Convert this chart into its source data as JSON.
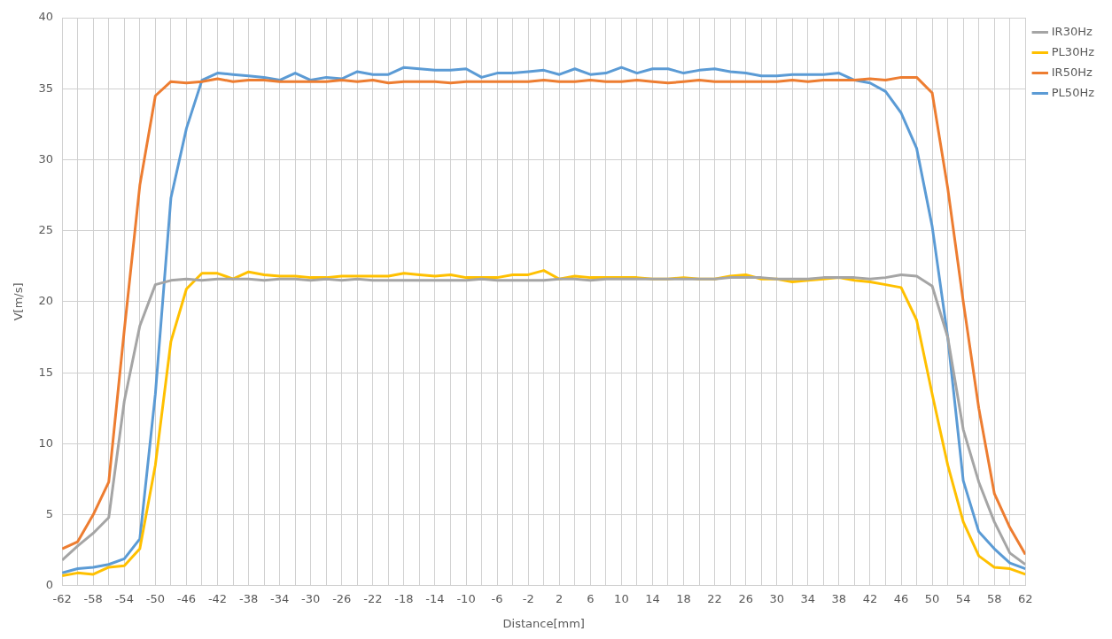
{
  "chart_data": {
    "type": "line",
    "xlabel": "Distance[mm]",
    "ylabel": "V[m/s]",
    "x": [
      -62,
      -60,
      -58,
      -56,
      -54,
      -52,
      -50,
      -48,
      -46,
      -44,
      -42,
      -40,
      -38,
      -36,
      -34,
      -32,
      -30,
      -28,
      -26,
      -24,
      -22,
      -20,
      -18,
      -16,
      -14,
      -12,
      -10,
      -8,
      -6,
      -4,
      -2,
      0,
      2,
      4,
      6,
      8,
      10,
      12,
      14,
      16,
      18,
      20,
      22,
      24,
      26,
      28,
      30,
      32,
      34,
      36,
      38,
      40,
      42,
      44,
      46,
      48,
      50,
      52,
      54,
      56,
      58,
      60,
      62
    ],
    "xlim": [
      -62,
      62
    ],
    "xticks": [
      -62,
      {
        "value": -60,
        "label": null
      },
      -58,
      {
        "value": -56,
        "label": null
      },
      -54,
      {
        "value": -52,
        "label": null
      },
      -50,
      {
        "value": -48,
        "label": null
      },
      -46,
      {
        "value": -44,
        "label": null
      },
      -42,
      {
        "value": -40,
        "label": null
      },
      -38,
      {
        "value": -36,
        "label": null
      },
      -34,
      {
        "value": -32,
        "label": null
      },
      -30,
      {
        "value": -28,
        "label": null
      },
      -26,
      {
        "value": -24,
        "label": null
      },
      -22,
      {
        "value": -20,
        "label": null
      },
      -18,
      {
        "value": -16,
        "label": null
      },
      -14,
      {
        "value": -12,
        "label": null
      },
      -10,
      {
        "value": -8,
        "label": null
      },
      -6,
      {
        "value": -4,
        "label": null
      },
      -2,
      {
        "value": 0,
        "label": null
      },
      2,
      {
        "value": 4,
        "label": null
      },
      6,
      {
        "value": 8,
        "label": null
      },
      10,
      {
        "value": 12,
        "label": null
      },
      14,
      {
        "value": 16,
        "label": null
      },
      18,
      {
        "value": 20,
        "label": null
      },
      22,
      {
        "value": 24,
        "label": null
      },
      26,
      {
        "value": 28,
        "label": null
      },
      30,
      {
        "value": 32,
        "label": null
      },
      34,
      {
        "value": 36,
        "label": null
      },
      38,
      {
        "value": 40,
        "label": null
      },
      42,
      {
        "value": 44,
        "label": null
      },
      46,
      {
        "value": 48,
        "label": null
      },
      50,
      {
        "value": 52,
        "label": null
      },
      54,
      {
        "value": 56,
        "label": null
      },
      58,
      {
        "value": 60,
        "label": null
      },
      62
    ],
    "series": [
      {
        "name": "IR30Hz",
        "color": "#a5a5a5",
        "values": [
          1.8,
          2.8,
          3.7,
          4.8,
          13,
          18.3,
          21.2,
          21.5,
          21.6,
          21.5,
          21.6,
          21.6,
          21.6,
          21.5,
          21.6,
          21.6,
          21.5,
          21.6,
          21.5,
          21.6,
          21.5,
          21.5,
          21.5,
          21.5,
          21.5,
          21.5,
          21.5,
          21.6,
          21.5,
          21.5,
          21.5,
          21.5,
          21.6,
          21.6,
          21.5,
          21.6,
          21.6,
          21.6,
          21.6,
          21.6,
          21.6,
          21.6,
          21.6,
          21.7,
          21.7,
          21.7,
          21.6,
          21.6,
          21.6,
          21.7,
          21.7,
          21.7,
          21.6,
          21.7,
          21.9,
          21.8,
          21.1,
          17.5,
          11,
          7.3,
          4.5,
          2.3,
          1.5
        ]
      },
      {
        "name": "PL30Hz",
        "color": "#ffc000",
        "values": [
          0.7,
          0.9,
          0.8,
          1.3,
          1.4,
          2.6,
          8.5,
          17.2,
          20.9,
          22.0,
          22.0,
          21.6,
          22.1,
          21.9,
          21.8,
          21.8,
          21.7,
          21.7,
          21.8,
          21.8,
          21.8,
          21.8,
          22.0,
          21.9,
          21.8,
          21.9,
          21.7,
          21.7,
          21.7,
          21.9,
          21.9,
          22.2,
          21.6,
          21.8,
          21.7,
          21.7,
          21.7,
          21.7,
          21.6,
          21.6,
          21.7,
          21.6,
          21.6,
          21.8,
          21.9,
          21.6,
          21.6,
          21.4,
          21.5,
          21.6,
          21.7,
          21.5,
          21.4,
          21.2,
          21.0,
          18.7,
          13.5,
          8.5,
          4.5,
          2.1,
          1.3,
          1.2,
          0.8
        ]
      },
      {
        "name": "IR50Hz",
        "color": "#ed7d31",
        "values": [
          2.6,
          3.1,
          5.0,
          7.3,
          18,
          28.2,
          34.5,
          35.5,
          35.4,
          35.5,
          35.7,
          35.5,
          35.6,
          35.6,
          35.5,
          35.5,
          35.5,
          35.5,
          35.6,
          35.5,
          35.6,
          35.4,
          35.5,
          35.5,
          35.5,
          35.4,
          35.5,
          35.5,
          35.5,
          35.5,
          35.5,
          35.6,
          35.5,
          35.5,
          35.6,
          35.5,
          35.5,
          35.6,
          35.5,
          35.4,
          35.5,
          35.6,
          35.5,
          35.5,
          35.5,
          35.5,
          35.5,
          35.6,
          35.5,
          35.6,
          35.6,
          35.6,
          35.7,
          35.6,
          35.8,
          35.8,
          34.7,
          28,
          20,
          12.5,
          6.5,
          4.1,
          2.2
        ]
      },
      {
        "name": "PL50Hz",
        "color": "#5b9bd5",
        "values": [
          0.9,
          1.2,
          1.3,
          1.5,
          1.9,
          3.3,
          13.5,
          27.3,
          32.2,
          35.6,
          36.1,
          36.0,
          35.9,
          35.8,
          35.6,
          36.1,
          35.6,
          35.8,
          35.7,
          36.2,
          36.0,
          36.0,
          36.5,
          36.4,
          36.3,
          36.3,
          36.4,
          35.8,
          36.1,
          36.1,
          36.2,
          36.3,
          36.0,
          36.4,
          36.0,
          36.1,
          36.5,
          36.1,
          36.4,
          36.4,
          36.1,
          36.3,
          36.4,
          36.2,
          36.1,
          35.9,
          35.9,
          36.0,
          36.0,
          36.0,
          36.1,
          35.6,
          35.4,
          34.8,
          33.3,
          30.8,
          25.3,
          17.5,
          7.4,
          3.8,
          2.6,
          1.6,
          1.2
        ]
      }
    ],
    "ylim": [
      0,
      40
    ],
    "yticks": [
      0,
      5,
      10,
      15,
      20,
      25,
      30,
      35,
      40
    ],
    "grid": true,
    "legend": "top right",
    "marker": "none",
    "line_style": "solid"
  }
}
